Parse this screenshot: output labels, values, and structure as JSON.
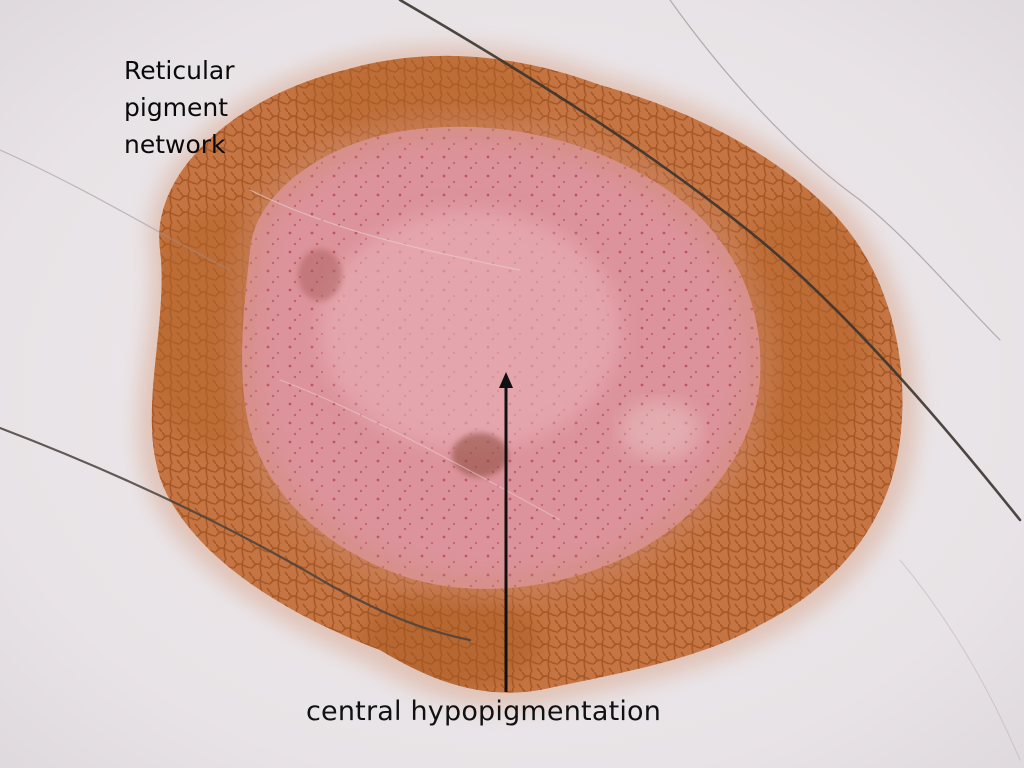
{
  "labels": {
    "top_left": [
      "Reticular",
      "pigment",
      "network"
    ],
    "bottom": "central hypopigmentation"
  },
  "colors": {
    "skin": "#eae6e9",
    "network_brown": "#b86a30",
    "lesion_center_pink": "#d98a94",
    "hair": "#3a3430",
    "arrow": "#111111"
  }
}
